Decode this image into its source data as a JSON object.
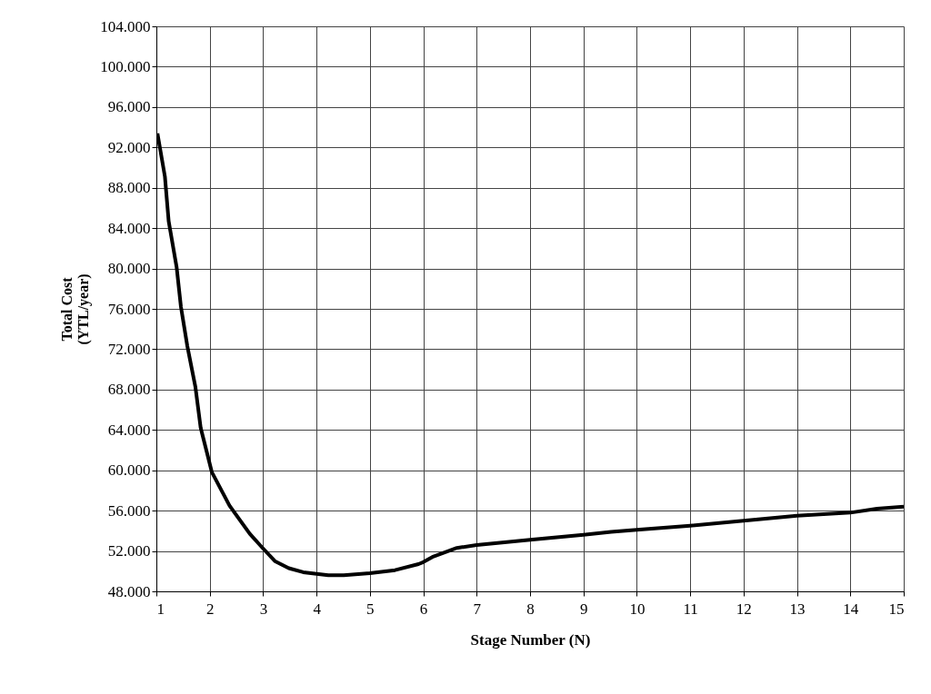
{
  "chart_data": {
    "type": "line",
    "xlabel": "Stage Number (N)",
    "ylabel": "Total Cost\n(YTL/year)",
    "series": [
      {
        "color": "#000000",
        "x": [
          1.02,
          1.16,
          1.23,
          1.38,
          1.46,
          1.58,
          1.73,
          1.83,
          2.04,
          2.37,
          2.75,
          2.99,
          3.22,
          3.48,
          3.75,
          4.22,
          4.51,
          5.0,
          5.47,
          5.91,
          6.0,
          6.17,
          6.63,
          7,
          8,
          9,
          9.52,
          10,
          11,
          12,
          13,
          14,
          14.5,
          15
        ],
        "values": [
          93400,
          89100,
          84700,
          80100,
          76200,
          72300,
          68300,
          64200,
          59800,
          56500,
          53700,
          52300,
          51000,
          50300,
          49900,
          49600,
          49600,
          49800,
          50100,
          50700,
          50900,
          51400,
          52300,
          52600,
          53100,
          53600,
          53900,
          54100,
          54500,
          55000,
          55500,
          55800,
          56200,
          56400
        ]
      }
    ],
    "xlim": [
      1,
      15
    ],
    "xticks": [
      1,
      2,
      3,
      4,
      5,
      6,
      7,
      8,
      9,
      10,
      11,
      12,
      13,
      14,
      15
    ],
    "ylim": [
      48000,
      104000
    ],
    "yticks": [
      {
        "value": 48000,
        "label": "48.000"
      },
      {
        "value": 52000,
        "label": "52.000"
      },
      {
        "value": 56000,
        "label": "56.000"
      },
      {
        "value": 60000,
        "label": "60.000"
      },
      {
        "value": 64000,
        "label": "64.000"
      },
      {
        "value": 68000,
        "label": "68.000"
      },
      {
        "value": 72000,
        "label": "72.000"
      },
      {
        "value": 76000,
        "label": "76.000"
      },
      {
        "value": 80000,
        "label": "80.000"
      },
      {
        "value": 84000,
        "label": "84.000"
      },
      {
        "value": 88000,
        "label": "88.000"
      },
      {
        "value": 92000,
        "label": "92.000"
      },
      {
        "value": 96000,
        "label": "96.000"
      },
      {
        "value": 100000,
        "label": "100.000"
      },
      {
        "value": 104000,
        "label": "104.000"
      }
    ],
    "grid": true,
    "marker": "none",
    "line_style": "solid"
  }
}
